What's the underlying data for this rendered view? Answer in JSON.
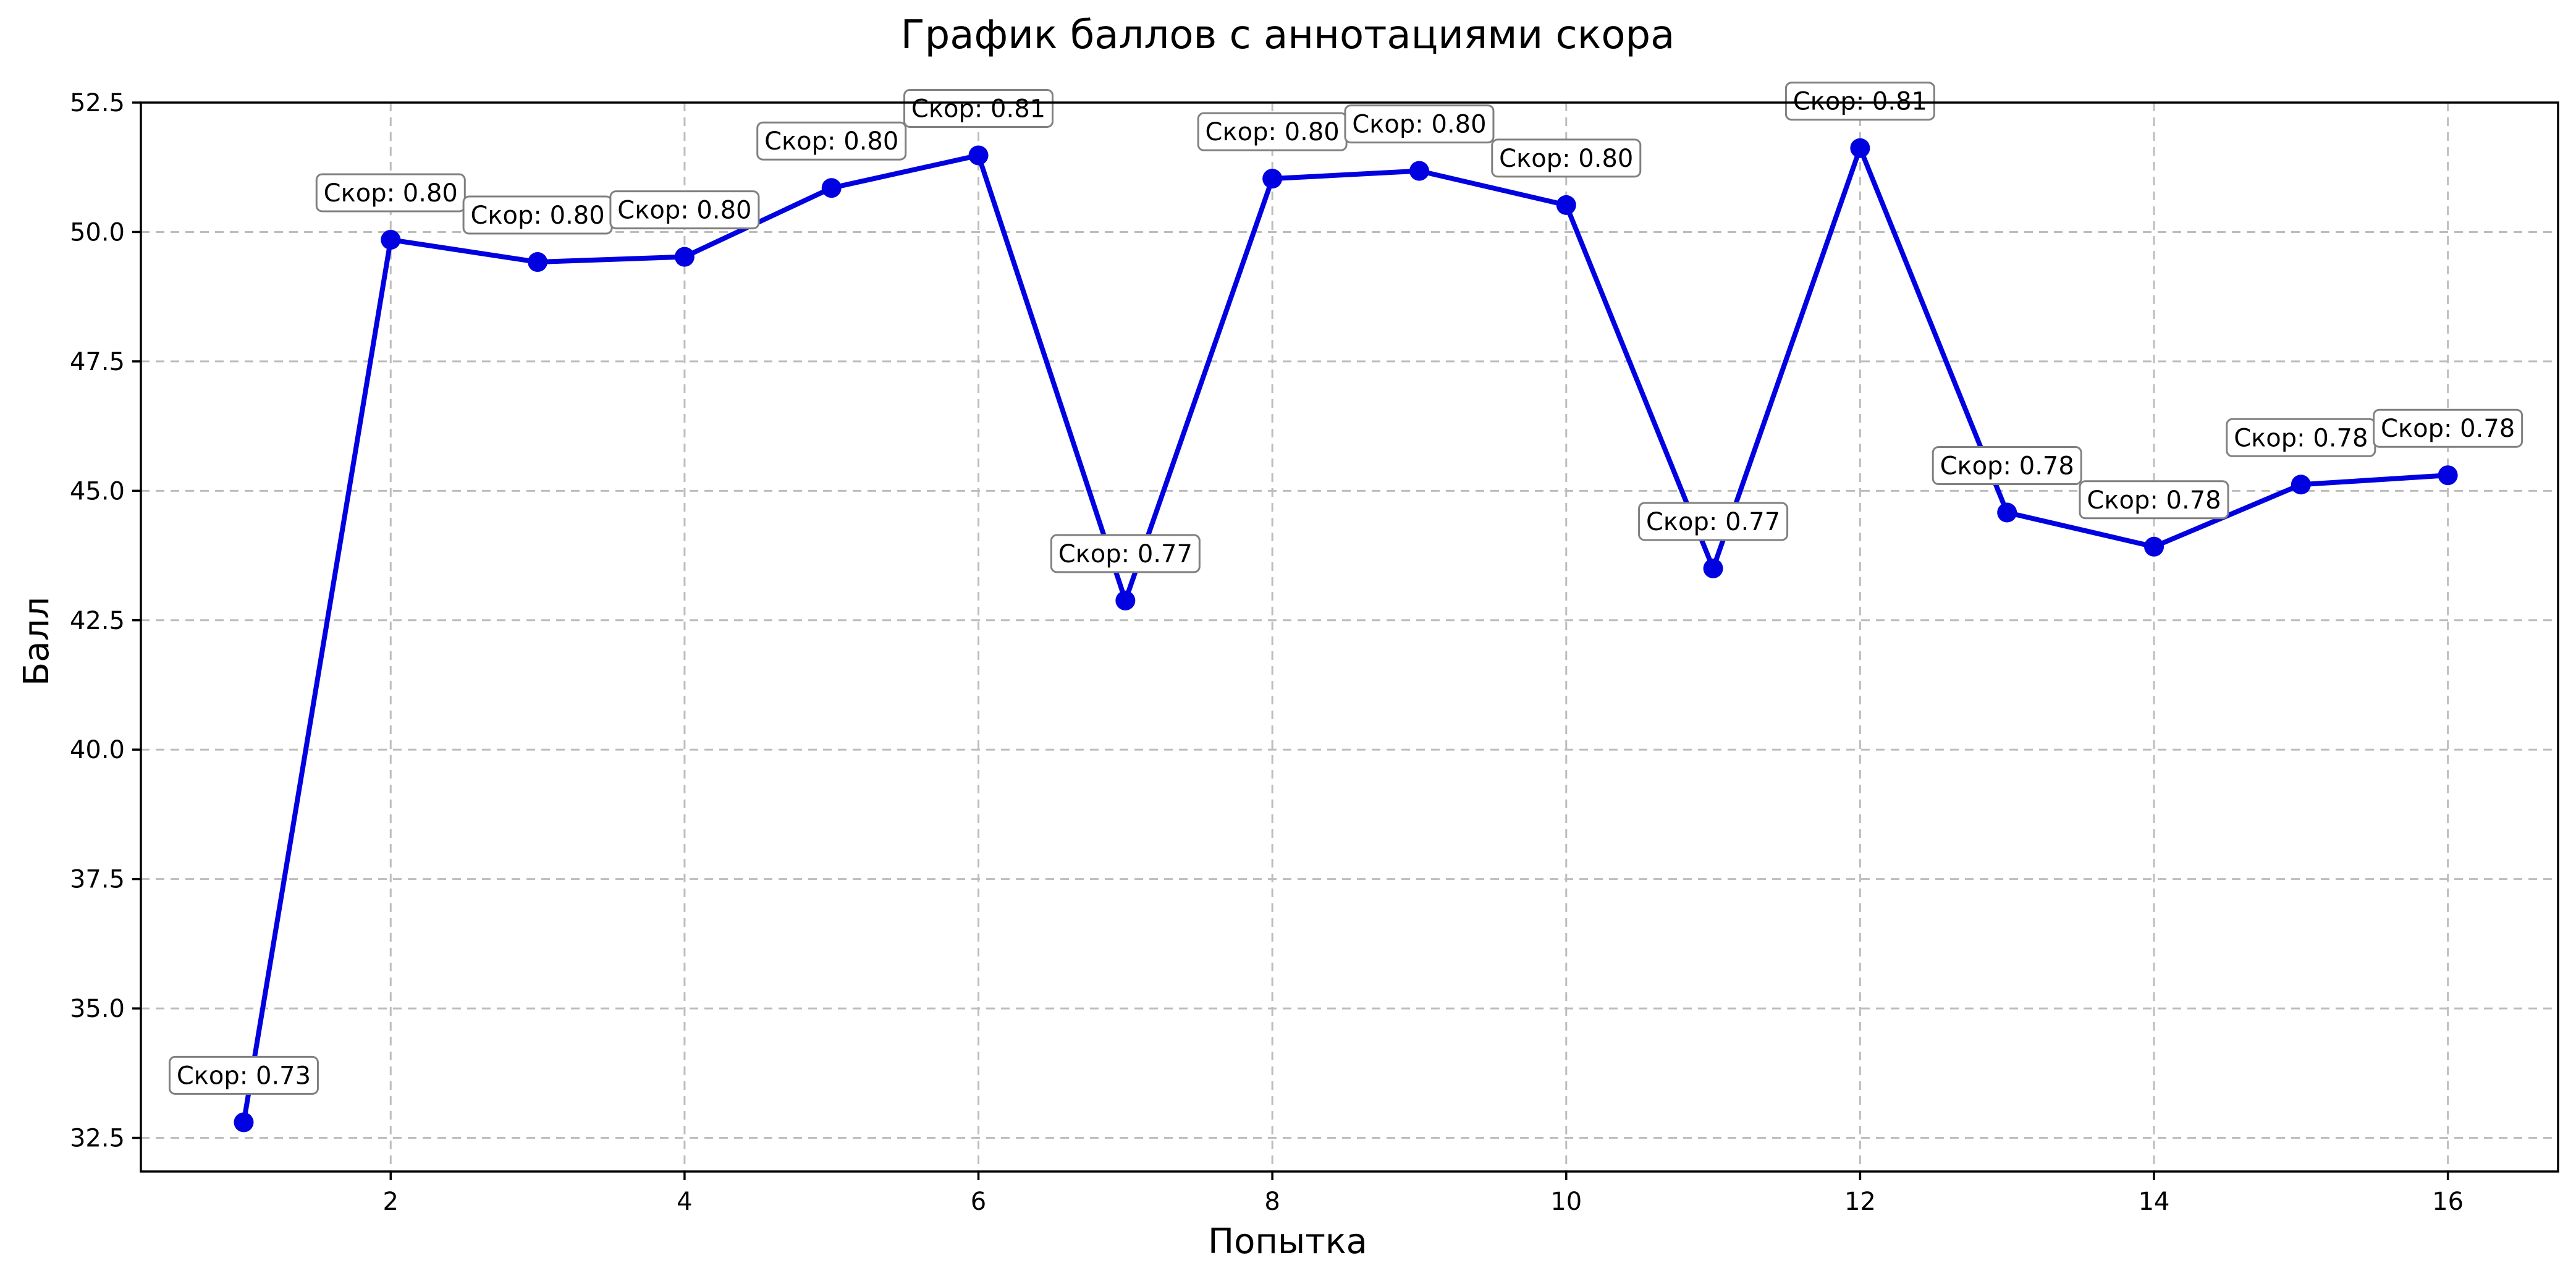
{
  "chart_data": {
    "type": "line",
    "title": "График баллов с аннотациями скора",
    "xlabel": "Попытка",
    "ylabel": "Балл",
    "xlim": [
      0.3,
      16.75
    ],
    "ylim": [
      31.85,
      52.5
    ],
    "xticks": [
      2,
      4,
      6,
      8,
      10,
      12,
      14,
      16
    ],
    "yticks": [
      32.5,
      35.0,
      37.5,
      40.0,
      42.5,
      45.0,
      47.5,
      50.0,
      52.5
    ],
    "grid": true,
    "color": "#0000e0",
    "series": [
      {
        "x": [
          1,
          2,
          3,
          4,
          5,
          6,
          7,
          8,
          9,
          10,
          11,
          12,
          13,
          14,
          15,
          16
        ],
        "values": [
          32.8,
          49.85,
          49.42,
          49.52,
          50.85,
          51.48,
          42.88,
          51.03,
          51.18,
          50.52,
          43.5,
          51.62,
          44.58,
          43.92,
          45.12,
          45.3
        ],
        "annotations": [
          "Скор: 0.73",
          "Скор: 0.80",
          "Скор: 0.80",
          "Скор: 0.80",
          "Скор: 0.80",
          "Скор: 0.81",
          "Скор: 0.77",
          "Скор: 0.80",
          "Скор: 0.80",
          "Скор: 0.80",
          "Скор: 0.77",
          "Скор: 0.81",
          "Скор: 0.78",
          "Скор: 0.78",
          "Скор: 0.78",
          "Скор: 0.78"
        ]
      }
    ]
  }
}
